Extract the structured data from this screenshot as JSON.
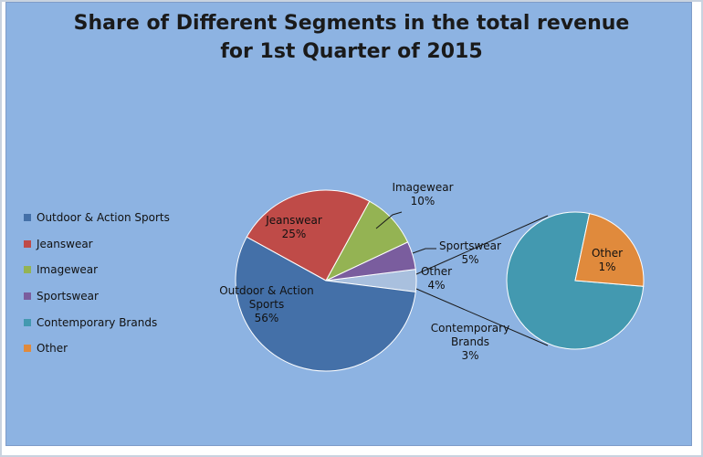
{
  "chart_data": {
    "type": "pie",
    "title_line1": "Share of Different Segments in the total revenue",
    "title_line2": "for 1st Quarter of 2015",
    "slices": [
      {
        "name": "Outdoor & Action Sports",
        "label_lines": [
          "Outdoor & Action",
          "Sports",
          "56%"
        ],
        "value": 56,
        "color": "#4470a8"
      },
      {
        "name": "Jeanswear",
        "label_lines": [
          "Jeanswear",
          "25%"
        ],
        "value": 25,
        "color": "#bf4b48"
      },
      {
        "name": "Imagewear",
        "label_lines": [
          "Imagewear",
          "10%"
        ],
        "value": 10,
        "color": "#94b353"
      },
      {
        "name": "Sportswear",
        "label_lines": [
          "Sportswear",
          "5%"
        ],
        "value": 5,
        "color": "#7a5d9e"
      },
      {
        "name": "Other",
        "label_lines": [
          "Other",
          "4%"
        ],
        "value": 4,
        "color": "#a9c0de"
      }
    ],
    "secondary_slices": [
      {
        "name": "Contemporary Brands",
        "label_lines": [
          "Contemporary",
          "Brands",
          "3%"
        ],
        "value": 3,
        "color": "#4399b0"
      },
      {
        "name": "Other",
        "label_lines": [
          "Other",
          "1%"
        ],
        "value": 1,
        "color": "#e08a3c"
      }
    ],
    "legend": [
      {
        "label": "Outdoor & Action Sports",
        "color": "#4470a8"
      },
      {
        "label": "Jeanswear",
        "color": "#bf4b48"
      },
      {
        "label": "Imagewear",
        "color": "#94b353"
      },
      {
        "label": "Sportswear",
        "color": "#7a5d9e"
      },
      {
        "label": "Contemporary Brands",
        "color": "#4399b0"
      },
      {
        "label": "Other",
        "color": "#e08a3c"
      }
    ],
    "legend_position": "left"
  }
}
